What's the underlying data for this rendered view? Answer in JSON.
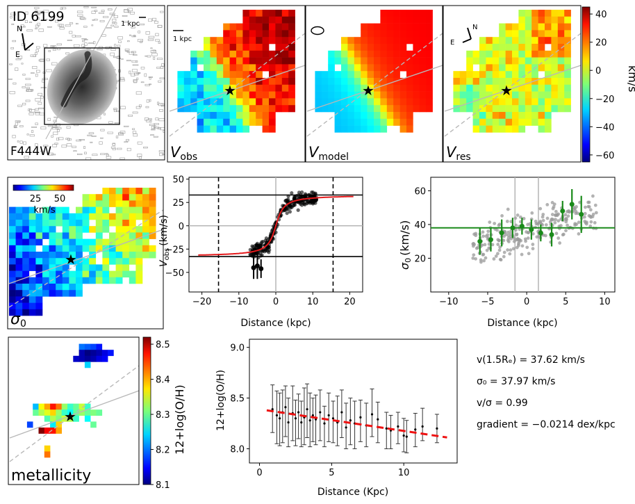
{
  "galaxy": {
    "id_label": "ID 6199",
    "filter_label": "F444W",
    "scale_bar_label": "1 kpc",
    "compass": {
      "north": "N",
      "east": "E"
    }
  },
  "velocity_maps": {
    "scale_bar_label": "1 kpc",
    "panels": [
      {
        "symbol": "V",
        "subscript": "obs"
      },
      {
        "symbol": "V",
        "subscript": "model"
      },
      {
        "symbol": "V",
        "subscript": "res"
      }
    ],
    "colorbar": {
      "label": "km/s",
      "ticks": [
        40,
        20,
        0,
        -20,
        -40,
        -60
      ],
      "range": [
        -65,
        45
      ]
    }
  },
  "dispersion_map": {
    "symbol": "σ",
    "subscript": "0",
    "colorbar": {
      "label": "km/s",
      "ticks": [
        25,
        50
      ]
    }
  },
  "metallicity_map": {
    "label": "metallicity",
    "colorbar": {
      "label": "12+log(O/H)",
      "ticks": [
        8.5,
        8.4,
        8.3,
        8.2,
        8.1
      ],
      "range": [
        8.1,
        8.52
      ]
    }
  },
  "summary": {
    "velocity": "v(1.5Rₑ) = 37.62 km/s",
    "sigma": "σ₀ = 37.97 km/s",
    "ratio": "v/σ = 0.99",
    "gradient": "gradient = −0.0214 dex/kpc"
  },
  "chart_data": [
    {
      "type": "scatter",
      "name": "rotation-curve",
      "xlabel": "Distance (kpc)",
      "ylabel": "V",
      "ylabel_sub": "obs",
      "ylabel_unit": "(km/s)",
      "xlim": [
        -23.5,
        23.5
      ],
      "ylim": [
        -71,
        52
      ],
      "xticks": [
        -20,
        -10,
        0,
        10,
        20
      ],
      "yticks": [
        50,
        25,
        0,
        -25,
        -50
      ],
      "plateau": [
        33,
        -33
      ],
      "dashed_x": [
        -15.5,
        15.5
      ],
      "model": {
        "v_flat": 33,
        "scale": 1.6
      },
      "points_desc": "~300 spaxel velocities, x from -7 to 11 kpc following the arctan model",
      "binned": {
        "x": [
          -6,
          -5,
          -4
        ],
        "y": [
          -45,
          -43,
          -46
        ],
        "err": [
          12,
          14,
          10
        ]
      }
    },
    {
      "type": "scatter",
      "name": "dispersion-profile",
      "xlabel": "Distance (kpc)",
      "ylabel": "σ",
      "ylabel_sub": "0",
      "ylabel_unit": "(km/s)",
      "xlim": [
        -12.3,
        11.3
      ],
      "ylim": [
        0,
        68
      ],
      "xticks": [
        -10,
        -5,
        0,
        5,
        10
      ],
      "yticks": [
        60,
        40,
        20
      ],
      "mean_sigma": 38,
      "vlines": [
        -1.5,
        1.5
      ],
      "binned": {
        "x": [
          -6,
          -4.6,
          -3.2,
          -1.8,
          -0.6,
          0.6,
          1.8,
          3.2,
          4.6,
          5.8,
          7
        ],
        "y": [
          30,
          31,
          35,
          38,
          39,
          37,
          35,
          34,
          48,
          52,
          46
        ],
        "err": [
          8,
          7,
          8,
          6,
          5,
          6,
          5,
          7,
          6,
          9,
          11
        ]
      }
    },
    {
      "type": "scatter",
      "name": "metallicity-gradient",
      "xlabel": "Distance (Kpc)",
      "ylabel": "12+log(O/H)",
      "xlim": [
        -0.7,
        13.7
      ],
      "ylim": [
        7.86,
        9.08
      ],
      "xticks": [
        0,
        5,
        10
      ],
      "yticks": [
        9.0,
        8.5,
        8.0
      ],
      "fit": {
        "slope": -0.0214,
        "intercept": 8.39,
        "x": [
          0.5,
          13
        ]
      },
      "points": [
        {
          "x": 0.9,
          "y": 8.39,
          "lo": 8.16,
          "hi": 8.63
        },
        {
          "x": 1.2,
          "y": 8.33,
          "lo": 8.05,
          "hi": 8.57
        },
        {
          "x": 1.4,
          "y": 8.3,
          "lo": 8.03,
          "hi": 8.55
        },
        {
          "x": 1.6,
          "y": 8.36,
          "lo": 8.06,
          "hi": 8.58
        },
        {
          "x": 1.8,
          "y": 8.41,
          "lo": 8.12,
          "hi": 8.62
        },
        {
          "x": 2.0,
          "y": 8.26,
          "lo": 8.02,
          "hi": 8.5
        },
        {
          "x": 2.3,
          "y": 8.35,
          "lo": 8.08,
          "hi": 8.62
        },
        {
          "x": 2.5,
          "y": 8.3,
          "lo": 8.03,
          "hi": 8.48
        },
        {
          "x": 2.7,
          "y": 8.36,
          "lo": 8.1,
          "hi": 8.54
        },
        {
          "x": 2.9,
          "y": 8.26,
          "lo": 8.02,
          "hi": 8.47
        },
        {
          "x": 3.1,
          "y": 8.31,
          "lo": 8.04,
          "hi": 8.6
        },
        {
          "x": 3.3,
          "y": 8.39,
          "lo": 8.11,
          "hi": 8.64
        },
        {
          "x": 3.5,
          "y": 8.28,
          "lo": 8.02,
          "hi": 8.55
        },
        {
          "x": 3.7,
          "y": 8.33,
          "lo": 8.07,
          "hi": 8.5
        },
        {
          "x": 3.9,
          "y": 8.29,
          "lo": 8.04,
          "hi": 8.53
        },
        {
          "x": 4.2,
          "y": 8.36,
          "lo": 8.08,
          "hi": 8.58
        },
        {
          "x": 4.5,
          "y": 8.25,
          "lo": 8.02,
          "hi": 8.42
        },
        {
          "x": 4.8,
          "y": 8.33,
          "lo": 8.07,
          "hi": 8.55
        },
        {
          "x": 5.1,
          "y": 8.3,
          "lo": 8.06,
          "hi": 8.47
        },
        {
          "x": 5.4,
          "y": 8.26,
          "lo": 8.03,
          "hi": 8.52
        },
        {
          "x": 5.7,
          "y": 8.36,
          "lo": 8.11,
          "hi": 8.58
        },
        {
          "x": 6.0,
          "y": 8.21,
          "lo": 8.0,
          "hi": 8.45
        },
        {
          "x": 6.3,
          "y": 8.28,
          "lo": 8.04,
          "hi": 8.5
        },
        {
          "x": 6.6,
          "y": 8.25,
          "lo": 8.0,
          "hi": 8.47
        },
        {
          "x": 7.0,
          "y": 8.31,
          "lo": 8.07,
          "hi": 8.48
        },
        {
          "x": 7.4,
          "y": 8.23,
          "lo": 8.02,
          "hi": 8.45
        },
        {
          "x": 7.8,
          "y": 8.34,
          "lo": 8.12,
          "hi": 8.59
        },
        {
          "x": 8.2,
          "y": 8.29,
          "lo": 8.06,
          "hi": 8.46
        },
        {
          "x": 8.8,
          "y": 8.2,
          "lo": 8.0,
          "hi": 8.36
        },
        {
          "x": 9.1,
          "y": 8.18,
          "lo": 8.0,
          "hi": 8.33
        },
        {
          "x": 9.6,
          "y": 8.22,
          "lo": 8.05,
          "hi": 8.36
        },
        {
          "x": 10.0,
          "y": 8.13,
          "lo": 7.97,
          "hi": 8.3
        },
        {
          "x": 10.2,
          "y": 8.12,
          "lo": 7.96,
          "hi": 8.28
        },
        {
          "x": 10.8,
          "y": 8.19,
          "lo": 8.02,
          "hi": 8.35
        },
        {
          "x": 11.3,
          "y": 8.22,
          "lo": 8.08,
          "hi": 8.4
        },
        {
          "x": 12.3,
          "y": 8.2,
          "lo": 8.06,
          "hi": 8.34
        }
      ]
    }
  ]
}
